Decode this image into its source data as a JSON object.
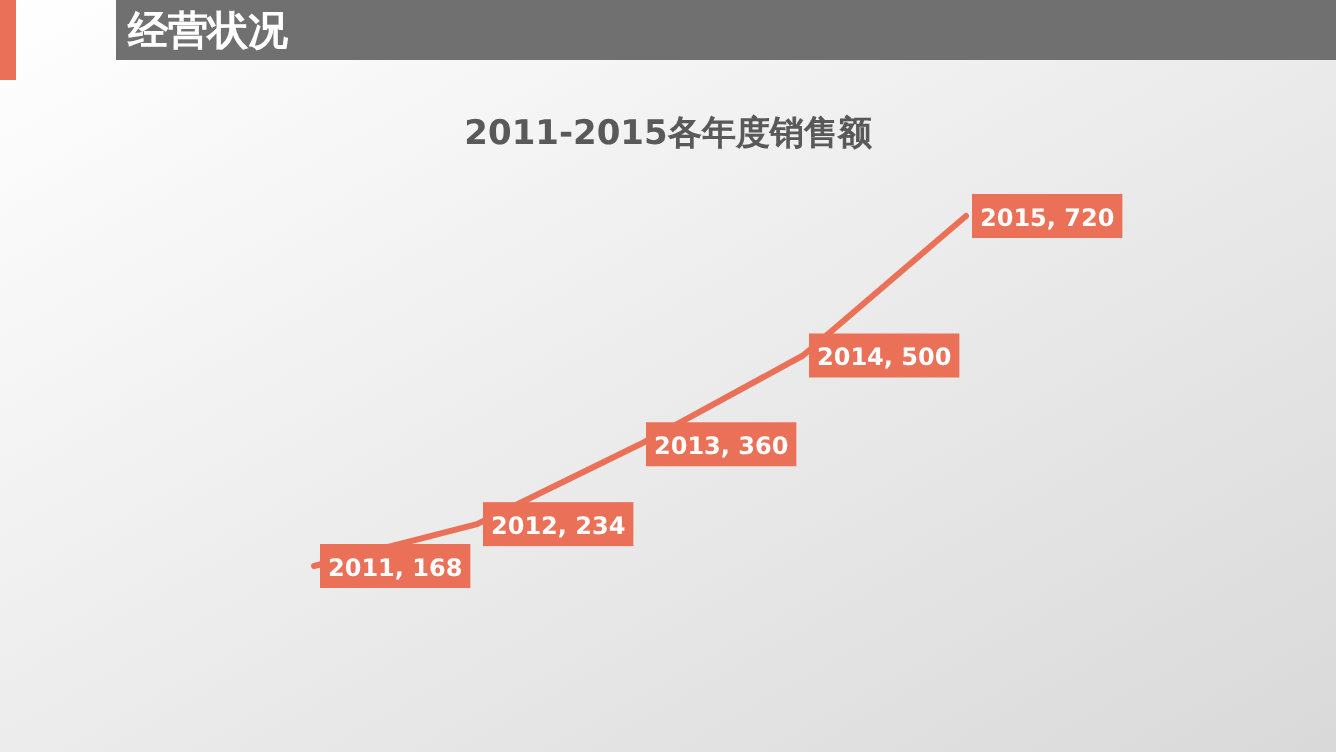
{
  "chart_data": {
    "type": "line",
    "title": "2011-2015各年度销售额",
    "annotations": [
      "经营状况"
    ],
    "categories": [
      null,
      null,
      null,
      null,
      null
    ],
    "series": [
      {
        "color": "#ea7157",
        "values": [
          168,
          234,
          360,
          500,
          720
        ],
        "value_labels": [
          "2011, 168",
          "2012, 234",
          "2013, 360",
          "2014, 500",
          "2015, 720"
        ]
      }
    ],
    "marker": "none",
    "line_style": "solid"
  }
}
